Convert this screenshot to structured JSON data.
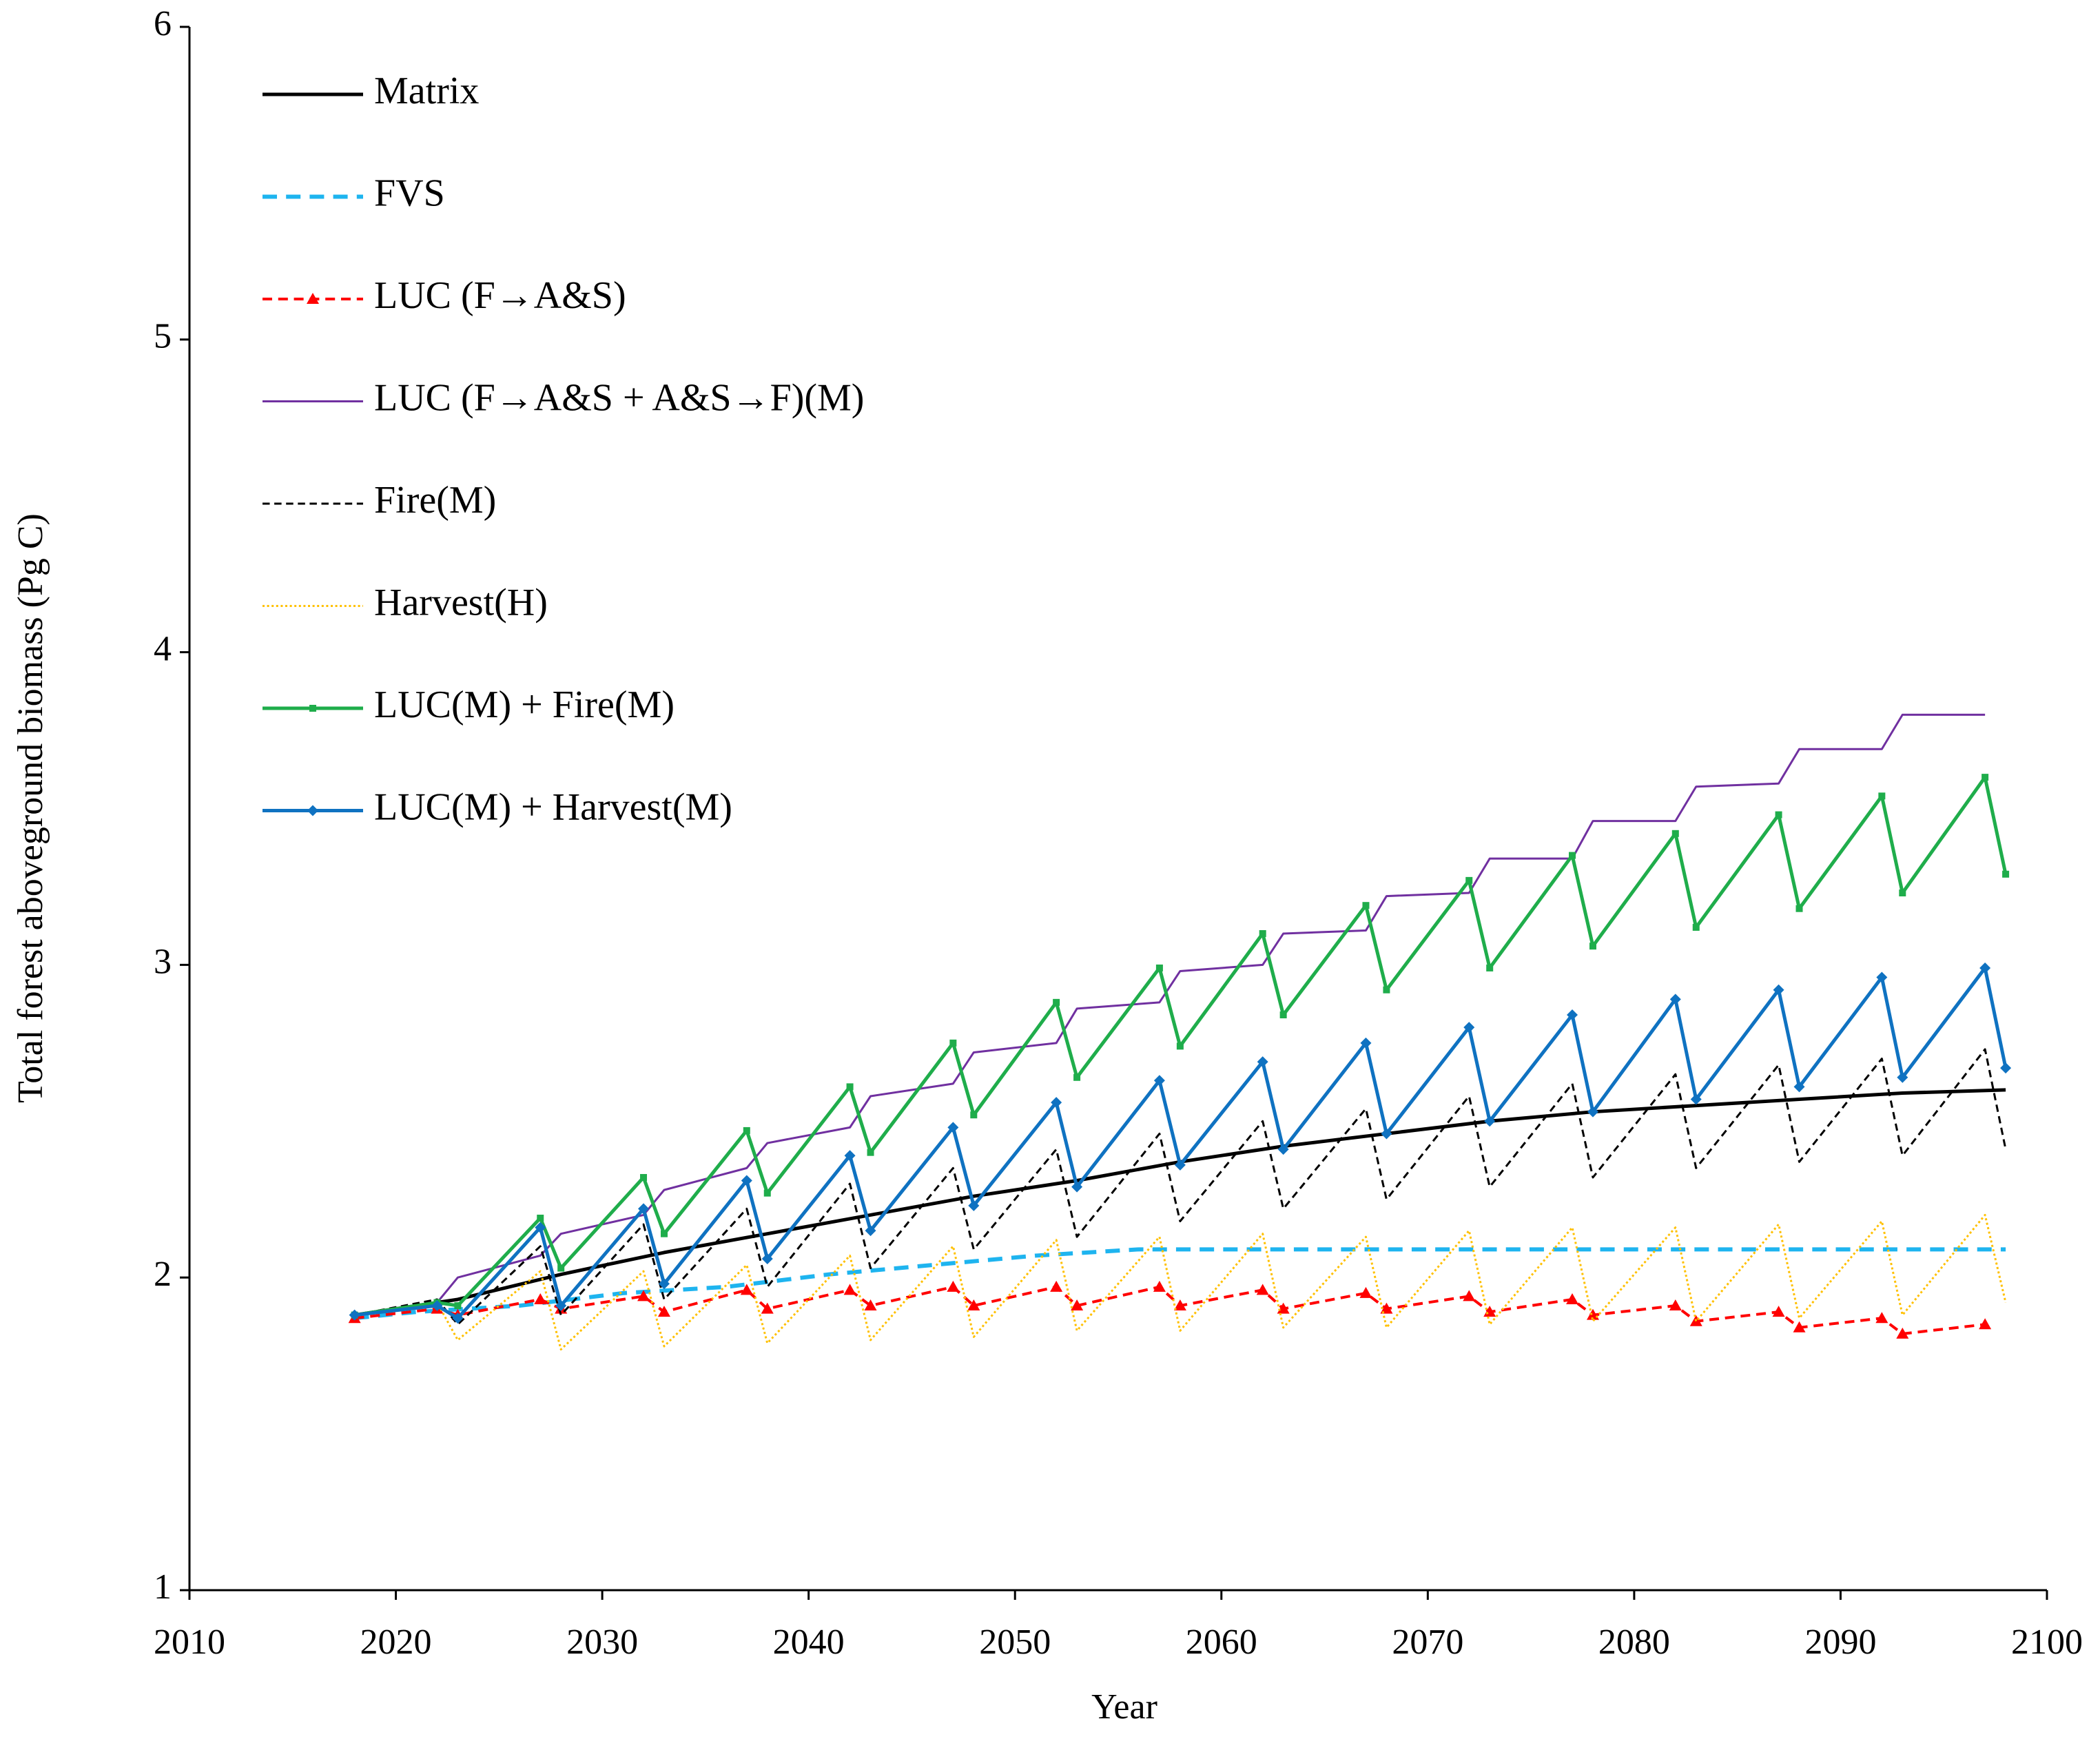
{
  "chart_data": {
    "type": "line",
    "xlabel": "Year",
    "ylabel": "Total forest aboveground biomass (Pg C)",
    "xlim": [
      2010,
      2100
    ],
    "xticks": [
      2010,
      2020,
      2030,
      2040,
      2050,
      2060,
      2070,
      2080,
      2090,
      2100
    ],
    "ylim": [
      1,
      6
    ],
    "yticks": [
      1,
      2,
      3,
      4,
      5,
      6
    ],
    "grid": false,
    "legend": "upper left",
    "series": [
      {
        "name": "Matrix",
        "color": "#000000",
        "line_style": "solid",
        "line_width": 5,
        "marker": "none",
        "x": [
          2018,
          2023,
          2028,
          2033,
          2038,
          2043,
          2048,
          2053,
          2058,
          2063,
          2068,
          2073,
          2078,
          2083,
          2088,
          2093,
          2098
        ],
        "values": [
          1.88,
          1.93,
          2.01,
          2.08,
          2.14,
          2.2,
          2.26,
          2.31,
          2.37,
          2.42,
          2.46,
          2.5,
          2.53,
          2.55,
          2.57,
          2.59,
          2.6
        ]
      },
      {
        "name": "FVS",
        "color": "#1eb4ef",
        "line_style": "dashed",
        "line_width": 6,
        "marker": "none",
        "x": [
          2018,
          2021,
          2026,
          2031,
          2036,
          2041,
          2046,
          2051,
          2056,
          2061,
          2098
        ],
        "values": [
          1.87,
          1.89,
          1.91,
          1.95,
          1.97,
          2.01,
          2.04,
          2.07,
          2.09,
          2.09,
          2.09
        ]
      },
      {
        "name": "LUC (F→A&S)",
        "color": "#ff0000",
        "line_style": "dashed",
        "line_width": 4,
        "marker": "triangle",
        "x": [
          2018,
          2022,
          2023,
          2027,
          2028,
          2032,
          2033,
          2037,
          2038,
          2042,
          2043,
          2047,
          2048,
          2052,
          2053,
          2057,
          2058,
          2062,
          2063,
          2067,
          2068,
          2072,
          2073,
          2077,
          2078,
          2082,
          2083,
          2087,
          2088,
          2092,
          2093,
          2097
        ],
        "values": [
          1.87,
          1.9,
          1.88,
          1.93,
          1.9,
          1.94,
          1.89,
          1.96,
          1.9,
          1.96,
          1.91,
          1.97,
          1.91,
          1.97,
          1.91,
          1.97,
          1.91,
          1.96,
          1.9,
          1.95,
          1.9,
          1.94,
          1.89,
          1.93,
          1.88,
          1.91,
          1.86,
          1.89,
          1.84,
          1.87,
          1.82,
          1.85
        ]
      },
      {
        "name": "LUC (F→A&S + A&S→F)(M)",
        "color": "#7030a0",
        "line_style": "solid",
        "line_width": 3,
        "marker": "none",
        "x": [
          2018,
          2022,
          2023,
          2027,
          2028,
          2032,
          2033,
          2037,
          2038,
          2042,
          2043,
          2047,
          2048,
          2052,
          2053,
          2057,
          2058,
          2062,
          2063,
          2067,
          2068,
          2072,
          2073,
          2077,
          2078,
          2082,
          2083,
          2087,
          2088,
          2092,
          2093,
          2097
        ],
        "values": [
          1.88,
          1.92,
          2.0,
          2.07,
          2.14,
          2.2,
          2.28,
          2.35,
          2.43,
          2.48,
          2.58,
          2.62,
          2.72,
          2.75,
          2.86,
          2.88,
          2.98,
          3.0,
          3.1,
          3.11,
          3.22,
          3.23,
          3.34,
          3.34,
          3.46,
          3.46,
          3.57,
          3.58,
          3.69,
          3.69,
          3.8,
          3.8
        ]
      },
      {
        "name": "Fire(M)",
        "color": "#000000",
        "line_style": "dashed",
        "line_width": 3,
        "marker": "none",
        "x": [
          2018,
          2022,
          2023,
          2027,
          2028,
          2032,
          2033,
          2037,
          2038,
          2042,
          2043,
          2047,
          2048,
          2052,
          2053,
          2057,
          2058,
          2062,
          2063,
          2067,
          2068,
          2072,
          2073,
          2077,
          2078,
          2082,
          2083,
          2087,
          2088,
          2092,
          2093,
          2097,
          2098
        ],
        "values": [
          1.88,
          1.93,
          1.85,
          2.1,
          1.88,
          2.17,
          1.93,
          2.22,
          1.97,
          2.3,
          2.03,
          2.35,
          2.09,
          2.41,
          2.13,
          2.46,
          2.18,
          2.5,
          2.22,
          2.54,
          2.25,
          2.58,
          2.29,
          2.62,
          2.32,
          2.65,
          2.35,
          2.68,
          2.37,
          2.7,
          2.39,
          2.73,
          2.41
        ]
      },
      {
        "name": "Harvest(H)",
        "color": "#ffc000",
        "line_style": "dotted",
        "line_width": 3,
        "marker": "none",
        "x": [
          2018,
          2022,
          2023,
          2027,
          2028,
          2032,
          2033,
          2037,
          2038,
          2042,
          2043,
          2047,
          2048,
          2052,
          2053,
          2057,
          2058,
          2062,
          2063,
          2067,
          2068,
          2072,
          2073,
          2077,
          2078,
          2082,
          2083,
          2087,
          2088,
          2092,
          2093,
          2097,
          2098
        ],
        "values": [
          1.88,
          1.92,
          1.8,
          2.02,
          1.77,
          2.02,
          1.78,
          2.04,
          1.79,
          2.07,
          1.8,
          2.1,
          1.81,
          2.12,
          1.83,
          2.13,
          1.83,
          2.14,
          1.84,
          2.13,
          1.84,
          2.15,
          1.85,
          2.16,
          1.86,
          2.16,
          1.86,
          2.17,
          1.87,
          2.18,
          1.88,
          2.2,
          1.92
        ]
      },
      {
        "name": "LUC(M) + Fire(M)",
        "color": "#1fad4b",
        "line_style": "solid",
        "line_width": 5,
        "marker": "square",
        "x": [
          2018,
          2022,
          2023,
          2027,
          2028,
          2032,
          2033,
          2037,
          2038,
          2042,
          2043,
          2047,
          2048,
          2052,
          2053,
          2057,
          2058,
          2062,
          2063,
          2067,
          2068,
          2072,
          2073,
          2077,
          2078,
          2082,
          2083,
          2087,
          2088,
          2092,
          2093,
          2097,
          2098
        ],
        "values": [
          1.88,
          1.92,
          1.91,
          2.19,
          2.03,
          2.32,
          2.14,
          2.47,
          2.27,
          2.61,
          2.4,
          2.75,
          2.52,
          2.88,
          2.64,
          2.99,
          2.74,
          3.1,
          2.84,
          3.19,
          2.92,
          3.27,
          2.99,
          3.35,
          3.06,
          3.42,
          3.12,
          3.48,
          3.18,
          3.54,
          3.23,
          3.6,
          3.29
        ]
      },
      {
        "name": "LUC(M) + Harvest(M)",
        "color": "#0f72c1",
        "line_style": "solid",
        "line_width": 5,
        "marker": "diamond",
        "x": [
          2018,
          2022,
          2023,
          2027,
          2028,
          2032,
          2033,
          2037,
          2038,
          2042,
          2043,
          2047,
          2048,
          2052,
          2053,
          2057,
          2058,
          2062,
          2063,
          2067,
          2068,
          2072,
          2073,
          2077,
          2078,
          2082,
          2083,
          2087,
          2088,
          2092,
          2093,
          2097,
          2098
        ],
        "values": [
          1.88,
          1.91,
          1.87,
          2.16,
          1.91,
          2.22,
          1.98,
          2.31,
          2.06,
          2.39,
          2.15,
          2.48,
          2.23,
          2.56,
          2.29,
          2.63,
          2.36,
          2.69,
          2.41,
          2.75,
          2.46,
          2.8,
          2.5,
          2.84,
          2.53,
          2.89,
          2.57,
          2.92,
          2.61,
          2.96,
          2.64,
          2.99,
          2.67
        ]
      }
    ]
  }
}
